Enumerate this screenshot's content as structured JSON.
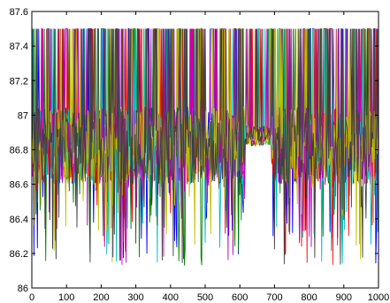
{
  "chart_data": {
    "type": "line",
    "title": "",
    "xlabel": "",
    "ylabel": "",
    "xlim": [
      0,
      1000
    ],
    "ylim": [
      86,
      87.6
    ],
    "x_ticks": [
      0,
      100,
      200,
      300,
      400,
      500,
      600,
      700,
      800,
      900,
      1000
    ],
    "x_tick_labels": [
      "0",
      "100",
      "200",
      "300",
      "400",
      "500",
      "600",
      "700",
      "800",
      "900",
      "1000"
    ],
    "y_ticks": [
      86,
      86.2,
      86.4,
      86.6,
      86.8,
      87,
      87.2,
      87.4,
      87.6
    ],
    "y_tick_labels": [
      "86",
      "86.2",
      "86.4",
      "86.6",
      "86.8",
      "87",
      "87.2",
      "87.4",
      "87.6"
    ],
    "grid": false,
    "legend": "none",
    "series_count": 7,
    "series_colors": [
      "#0000ff",
      "#008000",
      "#ff0000",
      "#00bfbf",
      "#bf00bf",
      "#bfbf00",
      "#404040"
    ],
    "series_description": "Seven overlapping noisy series over x = 0..1000, fluctuating between about 86.13 and a ceiling of 87.5, mostly centered near 86.8-87.0 with frequent spikes up to 87.5",
    "value_range": {
      "min": 86.13,
      "max": 87.5,
      "typical_low": 86.6,
      "typical_high": 87.0
    }
  }
}
